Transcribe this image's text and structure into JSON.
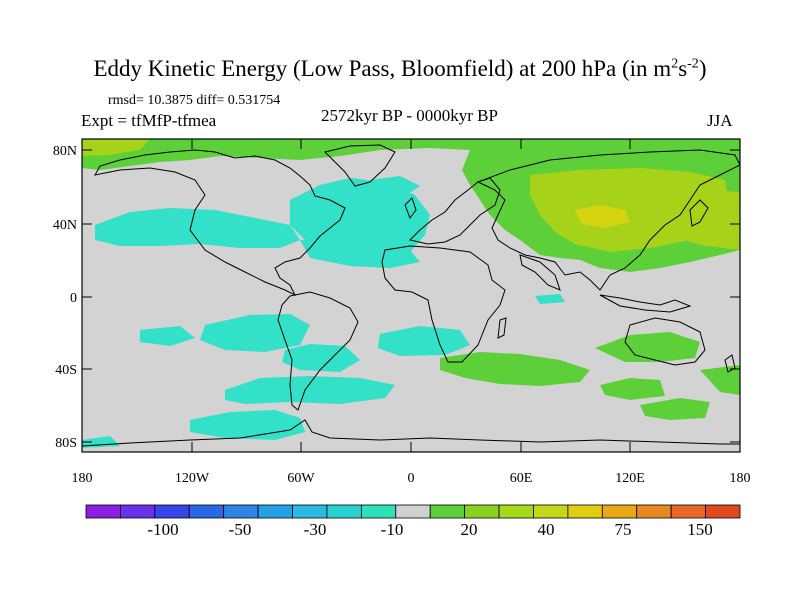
{
  "title": {
    "main": "Eddy Kinetic Energy (Low Pass, Bloomfield) at 200 hPa (in m",
    "sup1": "2",
    "mid": "s",
    "sup2": "-2",
    "end": ")"
  },
  "stats_line": "rmsd= 10.3875 diff= 0.531754",
  "experiment": "Expt = tfMfP-tfmea",
  "period": "2572kyr BP - 0000kyr BP",
  "season": "JJA",
  "lat_ticks": [
    "80N",
    "40N",
    "0",
    "40S",
    "80S"
  ],
  "lon_ticks": [
    "180",
    "120W",
    "60W",
    "0",
    "60E",
    "120E",
    "180"
  ],
  "colorbar": {
    "colors": [
      "#8c1fe0",
      "#6a32e8",
      "#3a45e6",
      "#2a67e6",
      "#2f84e6",
      "#26a0e4",
      "#2ab9e0",
      "#28d2d2",
      "#2ee0b8",
      "#d0d0d0",
      "#5ccf3a",
      "#8ad21e",
      "#a8d81a",
      "#c4d818",
      "#e0cc10",
      "#e8a818",
      "#e88820",
      "#e86828",
      "#e04a20"
    ],
    "labels": [
      "-100",
      "-50",
      "-30",
      "-10",
      "20",
      "40",
      "75",
      "150"
    ]
  },
  "map_colors": {
    "background": "#d3d3d3",
    "negative": "#33e0c8",
    "positive_green": "#5dcf38",
    "positive_yellowgreen": "#a6d31a",
    "positive_yellow": "#d4d410"
  }
}
